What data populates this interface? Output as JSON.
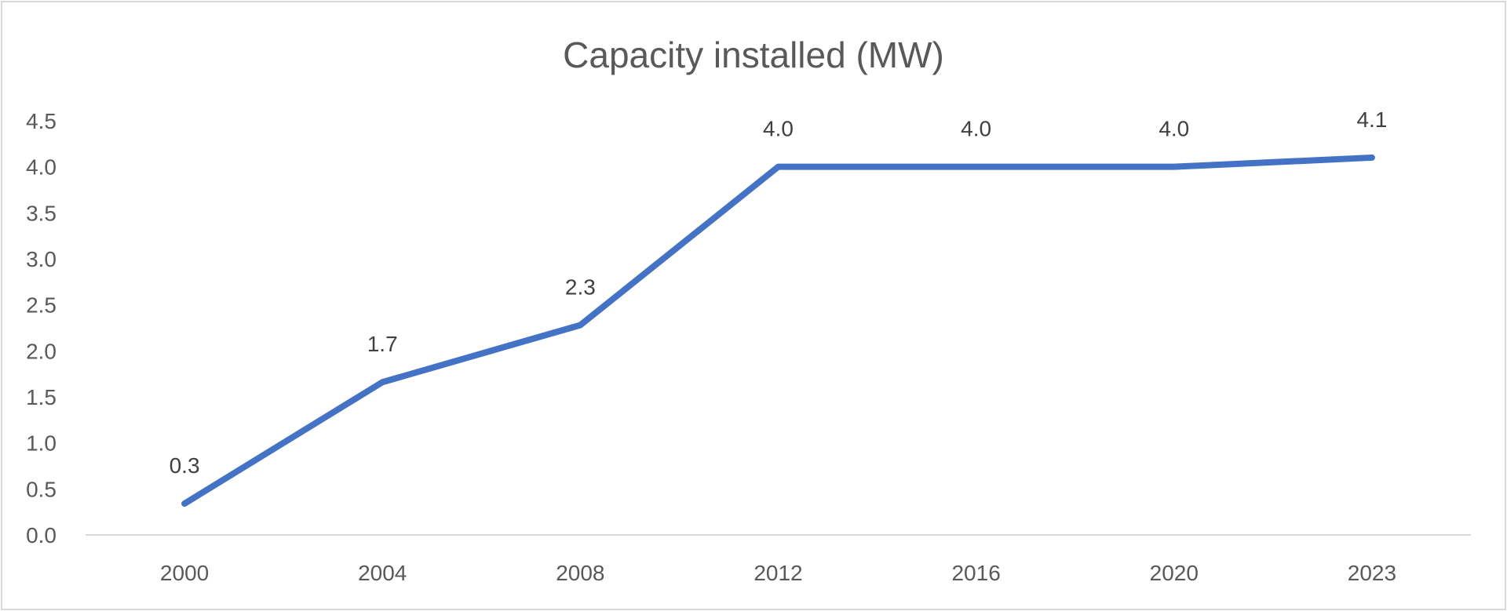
{
  "chart_data": {
    "type": "line",
    "title": "Capacity installed (MW)",
    "xlabel": "",
    "ylabel": "",
    "categories": [
      "2000",
      "2004",
      "2008",
      "2012",
      "2016",
      "2020",
      "2023"
    ],
    "series": [
      {
        "name": "Capacity installed (MW)",
        "values": [
          0.34,
          1.66,
          2.28,
          4.0,
          4.0,
          4.0,
          4.1
        ],
        "data_labels": [
          "0.3",
          "1.7",
          "2.3",
          "4.0",
          "4.0",
          "4.0",
          "4.1"
        ],
        "color": "#4472C4"
      }
    ],
    "ylim": [
      0,
      4.5
    ],
    "yticks": [
      "0.0",
      "0.5",
      "1.0",
      "1.5",
      "2.0",
      "2.5",
      "3.0",
      "3.5",
      "4.0",
      "4.5"
    ],
    "ytick_values": [
      0,
      0.5,
      1.0,
      1.5,
      2.0,
      2.5,
      3.0,
      3.5,
      4.0,
      4.5
    ],
    "grid": false,
    "legend": "none",
    "axis_color": "#d9d9d9",
    "text_color": "#595959"
  }
}
